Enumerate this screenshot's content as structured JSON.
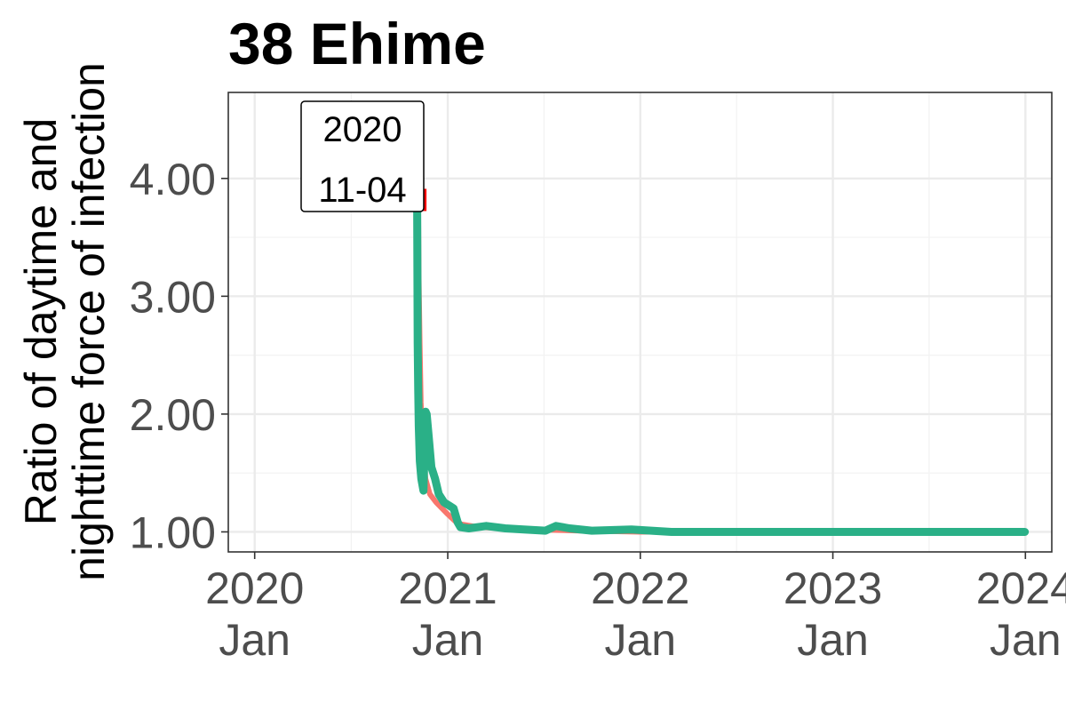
{
  "chart_data": {
    "type": "line",
    "title": "38 Ehime",
    "ylabel_lines": [
      "Ratio of daytime and",
      "nighttime force of infection"
    ],
    "xlim": [
      "2019-11-12",
      "2024-02-20"
    ],
    "ylim": [
      0.83,
      4.73
    ],
    "x_ticks": [
      {
        "date": "2020-01-01",
        "year": "2020",
        "month": "Jan"
      },
      {
        "date": "2021-01-01",
        "year": "2021",
        "month": "Jan"
      },
      {
        "date": "2022-01-01",
        "year": "2022",
        "month": "Jan"
      },
      {
        "date": "2023-01-01",
        "year": "2023",
        "month": "Jan"
      },
      {
        "date": "2024-01-01",
        "year": "2024",
        "month": "Jan"
      }
    ],
    "y_ticks": [
      {
        "value": 1,
        "label": "1.00"
      },
      {
        "value": 2,
        "label": "2.00"
      },
      {
        "value": 3,
        "label": "3.00"
      },
      {
        "value": 4,
        "label": "4.00"
      }
    ],
    "grid": true,
    "legend": "none",
    "series": [
      {
        "color": "#F8766D",
        "points": [
          [
            "2020-11-04",
            3.85
          ],
          [
            "2020-11-05",
            4.52
          ],
          [
            "2020-11-06",
            3.9
          ],
          [
            "2020-11-07",
            3.2
          ],
          [
            "2020-11-09",
            2.6
          ],
          [
            "2020-11-11",
            2.1
          ],
          [
            "2020-11-15",
            1.7
          ],
          [
            "2020-11-20",
            1.45
          ],
          [
            "2020-11-28",
            1.32
          ],
          [
            "2020-12-10",
            1.25
          ],
          [
            "2021-01-01",
            1.15
          ],
          [
            "2021-01-20",
            1.07
          ],
          [
            "2021-03-01",
            1.04
          ],
          [
            "2021-06-01",
            1.02
          ],
          [
            "2021-09-01",
            1.01
          ],
          [
            "2022-01-01",
            1.0
          ],
          [
            "2023-01-01",
            1.0
          ],
          [
            "2023-12-31",
            1.0
          ]
        ]
      },
      {
        "color": "#2AB087",
        "points": [
          [
            "2020-11-04",
            3.78
          ],
          [
            "2020-11-05",
            2.6
          ],
          [
            "2020-11-06",
            2.2
          ],
          [
            "2020-11-07",
            1.9
          ],
          [
            "2020-11-09",
            1.6
          ],
          [
            "2020-11-12",
            1.45
          ],
          [
            "2020-11-16",
            1.35
          ],
          [
            "2020-11-20",
            2.02
          ],
          [
            "2020-11-22",
            2.0
          ],
          [
            "2020-11-26",
            1.8
          ],
          [
            "2020-12-01",
            1.55
          ],
          [
            "2020-12-08",
            1.45
          ],
          [
            "2020-12-15",
            1.32
          ],
          [
            "2020-12-25",
            1.25
          ],
          [
            "2021-01-05",
            1.22
          ],
          [
            "2021-01-12",
            1.2
          ],
          [
            "2021-01-20",
            1.08
          ],
          [
            "2021-01-25",
            1.04
          ],
          [
            "2021-02-10",
            1.03
          ],
          [
            "2021-03-15",
            1.05
          ],
          [
            "2021-04-20",
            1.03
          ],
          [
            "2021-05-25",
            1.02
          ],
          [
            "2021-07-05",
            1.01
          ],
          [
            "2021-07-25",
            1.05
          ],
          [
            "2021-08-20",
            1.03
          ],
          [
            "2021-10-01",
            1.01
          ],
          [
            "2021-12-15",
            1.02
          ],
          [
            "2022-03-01",
            1.0
          ],
          [
            "2022-08-01",
            1.0
          ],
          [
            "2023-01-01",
            1.0
          ],
          [
            "2023-06-01",
            1.0
          ],
          [
            "2023-12-31",
            1.0
          ]
        ]
      }
    ],
    "annotation": {
      "year": "2020",
      "date": "11-04",
      "marker_date": "2020-11-04",
      "marker_value": 3.81,
      "marker_color": "#FF0000"
    }
  }
}
